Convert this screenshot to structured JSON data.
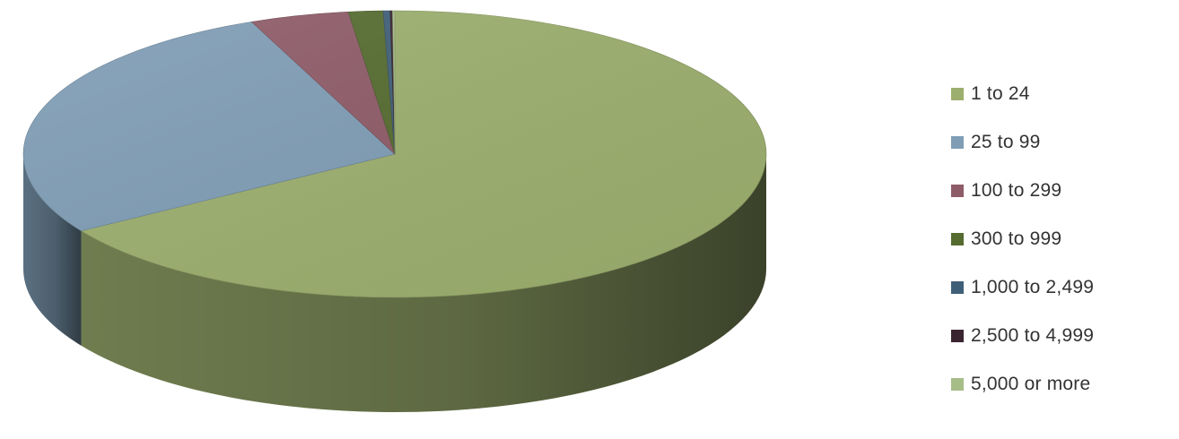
{
  "chart_data": {
    "type": "pie",
    "title": "",
    "legend_position": "right",
    "categories": [
      "1 to 24",
      "25 to 99",
      "100 to 299",
      "300 to 999",
      "1,000 to 2,499",
      "2,500 to 4,999",
      "5,000 or more"
    ],
    "values": [
      66.0,
      27.7,
      4.3,
      1.5,
      0.3,
      0.1,
      0.1
    ],
    "colors": [
      "#9caf6e",
      "#7f9db5",
      "#8e5b68",
      "#556b2f",
      "#3f5f78",
      "#3a2430",
      "#a7bd88"
    ]
  }
}
